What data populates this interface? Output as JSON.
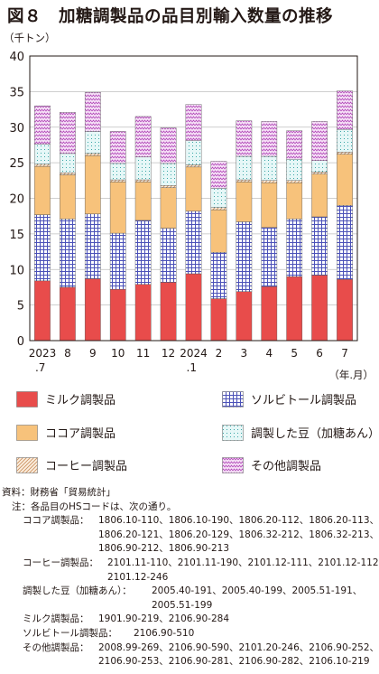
{
  "title": "図８　加糖調製品の品目別輸入数量の推移",
  "colors": {
    "milk": "#e84c4b",
    "cocoa": "#f7c27b",
    "coffee": "#f4dcc4",
    "sorbitol": "#7b7fd1",
    "bean": "#d5eff0",
    "other": "#e2b6e6"
  },
  "chart_data": {
    "type": "bar",
    "stacked": true,
    "unit_label": "（千トン）",
    "x_unit_label": "（年.月）",
    "ylim": [
      0,
      40
    ],
    "yticks": [
      0,
      5,
      10,
      15,
      20,
      25,
      30,
      35,
      40
    ],
    "categories": [
      "2023\n.7",
      "8",
      "9",
      "10",
      "11",
      "12",
      "2024\n.1",
      "2",
      "3",
      "4",
      "5",
      "6",
      "7"
    ],
    "series": [
      {
        "name": "ミルク調製品",
        "values": [
          8.4,
          7.5,
          8.7,
          7.2,
          7.9,
          8.2,
          9.4,
          5.9,
          6.9,
          7.6,
          9.0,
          9.2,
          8.6
        ]
      },
      {
        "name": "ソルビトール調製品",
        "values": [
          9.3,
          9.6,
          9.1,
          7.9,
          9.0,
          7.6,
          8.8,
          6.5,
          9.8,
          8.3,
          8.1,
          8.2,
          10.4
        ]
      },
      {
        "name": "ココア調製品",
        "values": [
          6.8,
          6.2,
          8.2,
          7.2,
          5.4,
          5.7,
          6.2,
          6.0,
          5.6,
          6.3,
          5.1,
          6.0,
          7.2
        ]
      },
      {
        "name": "コーヒー調製品",
        "values": [
          0.3,
          0.3,
          0.3,
          0.3,
          0.3,
          0.3,
          0.3,
          0.3,
          0.3,
          0.3,
          0.3,
          0.3,
          0.3
        ]
      },
      {
        "name": "調製した豆（加糖あん）",
        "values": [
          2.8,
          2.7,
          3.1,
          2.3,
          3.2,
          3.1,
          3.4,
          2.7,
          3.3,
          3.4,
          3.0,
          1.6,
          3.2
        ]
      },
      {
        "name": "その他調製品",
        "values": [
          5.4,
          5.8,
          5.5,
          4.5,
          5.7,
          5.0,
          5.1,
          3.8,
          5.0,
          4.9,
          4.0,
          5.5,
          5.4
        ]
      }
    ]
  },
  "legend": [
    {
      "label": "ミルク調製品",
      "color": "milk"
    },
    {
      "label": "ソルビトール調製品",
      "color": "sorbitol"
    },
    {
      "label": "ココア調製品",
      "color": "cocoa"
    },
    {
      "label": "調製した豆（加糖あん）",
      "color": "bean"
    },
    {
      "label": "コーヒー調製品",
      "color": "coffee"
    },
    {
      "label": "その他調製品",
      "color": "other"
    }
  ],
  "notes": {
    "source": "資料：財務省「貿易統計」",
    "note_head": "注：各品目のHSコードは、次の通り。",
    "cocoa_label": "ココア調製品：",
    "cocoa_1": "1806.10-110、1806.10-190、1806.20-112、1806.20-113、",
    "cocoa_2": "1806.20-121、1806.20-129、1806.32-212、1806.32-213、",
    "cocoa_3": "1806.90-212、1806.90-213",
    "coffee_label": "コーヒー調製品：",
    "coffee_1": "2101.11-110、2101.11-190、2101.12-111、2101.12-112、",
    "coffee_2": "2101.12-246",
    "bean_label": "調製した豆（加糖あん）：",
    "bean_1": "2005.40-191、2005.40-199、2005.51-191、",
    "bean_2": "2005.51-199",
    "milk_label": "ミルク調製品：",
    "milk_1": "1901.90-219、2106.90-284",
    "sorbitol_label": "ソルビトール調製品：",
    "sorbitol_1": "2106.90-510",
    "other_label": "その他調製品：",
    "other_1": "2008.99-269、2106.90-590、2101.20-246、2106.90-252、",
    "other_2": "2106.90-253、2106.90-281、2106.90-282、2106.10-219"
  }
}
